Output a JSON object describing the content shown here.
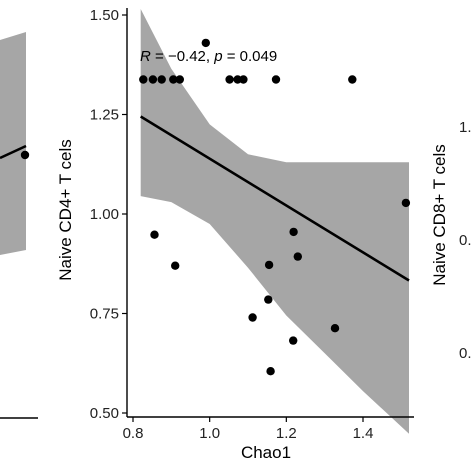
{
  "chart_data": [
    {
      "panel": "left-partial",
      "type": "scatter",
      "points": [
        {
          "x": null,
          "y": null,
          "note": "partially visible panel; only one point visible near right edge"
        }
      ],
      "xlim": [
        null,
        null
      ],
      "ylim": [
        null,
        null
      ],
      "xlabel": "",
      "ylabel": ""
    },
    {
      "panel": "center",
      "type": "scatter",
      "xlabel": "Chao1",
      "ylabel": "Naive CD4+ T cels",
      "xlim": [
        0.8,
        1.55
      ],
      "ylim": [
        0.5,
        1.5
      ],
      "x_ticks": [
        "0.8",
        "1.0",
        "1.2",
        "1.4"
      ],
      "x_tick_values": [
        0.8,
        1.0,
        1.2,
        1.4
      ],
      "y_ticks": [
        "0.50",
        "0.75",
        "1.00",
        "1.25",
        "1.50"
      ],
      "y_tick_values": [
        0.5,
        0.75,
        1.0,
        1.25,
        1.5
      ],
      "annotation": {
        "R_symbol": "R",
        "equals_R": " = −0.42, ",
        "p_symbol": "p",
        "equals_p": " = 0.049"
      },
      "points": [
        {
          "x": 0.827,
          "y": 1.338
        },
        {
          "x": 0.852,
          "y": 1.338
        },
        {
          "x": 0.875,
          "y": 1.338
        },
        {
          "x": 0.905,
          "y": 1.338
        },
        {
          "x": 0.922,
          "y": 1.338
        },
        {
          "x": 0.99,
          "y": 1.43
        },
        {
          "x": 1.052,
          "y": 1.338
        },
        {
          "x": 1.073,
          "y": 1.338
        },
        {
          "x": 1.088,
          "y": 1.338
        },
        {
          "x": 1.173,
          "y": 1.338
        },
        {
          "x": 1.372,
          "y": 1.338
        },
        {
          "x": 0.856,
          "y": 0.948
        },
        {
          "x": 0.91,
          "y": 0.87
        },
        {
          "x": 1.219,
          "y": 0.955
        },
        {
          "x": 1.23,
          "y": 0.893
        },
        {
          "x": 1.155,
          "y": 0.872
        },
        {
          "x": 1.153,
          "y": 0.785
        },
        {
          "x": 1.112,
          "y": 0.74
        },
        {
          "x": 1.327,
          "y": 0.713
        },
        {
          "x": 1.218,
          "y": 0.682
        },
        {
          "x": 1.159,
          "y": 0.605
        },
        {
          "x": 1.512,
          "y": 1.028
        }
      ],
      "regression": {
        "x": [
          0.82,
          1.52
        ],
        "y": [
          1.245,
          0.833
        ]
      },
      "ci_band": {
        "x": [
          0.82,
          0.9,
          1.0,
          1.1,
          1.2,
          1.3,
          1.4,
          1.52
        ],
        "upper": [
          1.515,
          1.365,
          1.225,
          1.15,
          1.13,
          1.13,
          1.13,
          1.13
        ],
        "lower": [
          1.045,
          1.03,
          0.975,
          0.865,
          0.745,
          0.65,
          0.555,
          0.448
        ]
      }
    },
    {
      "panel": "right-partial",
      "type": "scatter",
      "ylabel": "Naive CD8+ T cels",
      "y_tick_fragments": [
        "1.",
        "0.",
        "0."
      ],
      "points": []
    }
  ]
}
